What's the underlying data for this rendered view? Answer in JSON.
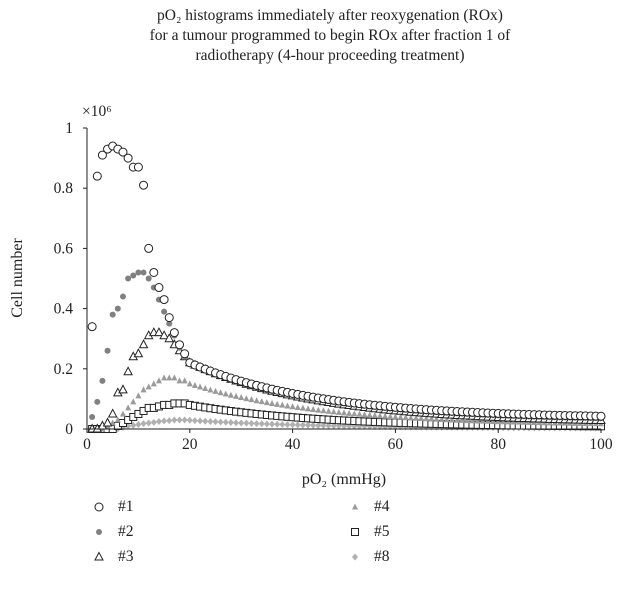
{
  "title_lines": [
    "pO₂ histograms immediately after reoxygenation (ROx)",
    "for a tumour programmed to begin ROx after fraction 1 of",
    "radiotherapy (4-hour proceeding treatment)"
  ],
  "chart_data": {
    "type": "scatter",
    "xlabel": "pO₂ (mmHg)",
    "ylabel": "Cell number",
    "y_multiplier_label": "×10⁶",
    "xlim": [
      0,
      100
    ],
    "ylim": [
      0,
      1
    ],
    "x_ticks": [
      "0",
      "20",
      "40",
      "60",
      "80",
      "100"
    ],
    "y_ticks": [
      "0",
      "0.2",
      "0.4",
      "0.6",
      "0.8",
      "1"
    ],
    "grid": false,
    "legend_position": "bottom",
    "series": [
      {
        "name": "#1",
        "marker": "open-circle",
        "color": "#222222",
        "peak_x": 5,
        "peak_y": 0.94,
        "points": [
          [
            1,
            0.34
          ],
          [
            2,
            0.84
          ],
          [
            3,
            0.91
          ],
          [
            4,
            0.93
          ],
          [
            5,
            0.94
          ],
          [
            6,
            0.93
          ],
          [
            7,
            0.92
          ],
          [
            8,
            0.9
          ],
          [
            9,
            0.87
          ],
          [
            10,
            0.87
          ],
          [
            11,
            0.81
          ],
          [
            12,
            0.6
          ],
          [
            13,
            0.52
          ],
          [
            14,
            0.47
          ],
          [
            15,
            0.43
          ],
          [
            16,
            0.37
          ],
          [
            17,
            0.32
          ],
          [
            18,
            0.28
          ],
          [
            19,
            0.25
          ],
          [
            20,
            0.22
          ]
        ]
      },
      {
        "name": "#2",
        "marker": "filled-circle",
        "color": "#808080",
        "peak_x": 11,
        "peak_y": 0.52,
        "points": [
          [
            1,
            0.04
          ],
          [
            2,
            0.09
          ],
          [
            3,
            0.16
          ],
          [
            4,
            0.26
          ],
          [
            5,
            0.38
          ],
          [
            6,
            0.4
          ],
          [
            7,
            0.44
          ],
          [
            8,
            0.5
          ],
          [
            9,
            0.51
          ],
          [
            10,
            0.52
          ],
          [
            11,
            0.52
          ],
          [
            12,
            0.5
          ],
          [
            13,
            0.47
          ],
          [
            14,
            0.43
          ],
          [
            15,
            0.39
          ],
          [
            16,
            0.35
          ],
          [
            17,
            0.31
          ],
          [
            18,
            0.27
          ],
          [
            19,
            0.24
          ],
          [
            20,
            0.22
          ]
        ]
      },
      {
        "name": "#3",
        "marker": "open-triangle",
        "color": "#222222",
        "peak_x": 13,
        "peak_y": 0.32,
        "points": [
          [
            1,
            0.0
          ],
          [
            2,
            0.0
          ],
          [
            3,
            0.01
          ],
          [
            4,
            0.02
          ],
          [
            5,
            0.05
          ],
          [
            6,
            0.12
          ],
          [
            7,
            0.13
          ],
          [
            8,
            0.19
          ],
          [
            9,
            0.24
          ],
          [
            10,
            0.25
          ],
          [
            11,
            0.28
          ],
          [
            12,
            0.31
          ],
          [
            13,
            0.32
          ],
          [
            14,
            0.32
          ],
          [
            15,
            0.31
          ],
          [
            16,
            0.3
          ],
          [
            17,
            0.28
          ],
          [
            18,
            0.26
          ],
          [
            19,
            0.24
          ],
          [
            20,
            0.22
          ]
        ]
      },
      {
        "name": "#4",
        "marker": "filled-triangle",
        "color": "#9a9a9a",
        "peak_x": 16,
        "peak_y": 0.17,
        "points": [
          [
            1,
            0.0
          ],
          [
            2,
            0.0
          ],
          [
            3,
            0.0
          ],
          [
            4,
            0.01
          ],
          [
            5,
            0.02
          ],
          [
            6,
            0.03
          ],
          [
            7,
            0.05
          ],
          [
            8,
            0.07
          ],
          [
            9,
            0.09
          ],
          [
            10,
            0.11
          ],
          [
            11,
            0.13
          ],
          [
            12,
            0.14
          ],
          [
            13,
            0.15
          ],
          [
            14,
            0.16
          ],
          [
            15,
            0.17
          ],
          [
            16,
            0.17
          ],
          [
            17,
            0.17
          ],
          [
            18,
            0.16
          ],
          [
            19,
            0.16
          ],
          [
            20,
            0.15
          ]
        ]
      },
      {
        "name": "#5",
        "marker": "open-square",
        "color": "#222222",
        "peak_x": 19,
        "peak_y": 0.085,
        "points": [
          [
            1,
            0.0
          ],
          [
            2,
            0.0
          ],
          [
            3,
            0.0
          ],
          [
            4,
            0.0
          ],
          [
            5,
            0.0
          ],
          [
            6,
            0.01
          ],
          [
            7,
            0.02
          ],
          [
            8,
            0.03
          ],
          [
            9,
            0.04
          ],
          [
            10,
            0.05
          ],
          [
            11,
            0.06
          ],
          [
            12,
            0.07
          ],
          [
            13,
            0.07
          ],
          [
            14,
            0.075
          ],
          [
            15,
            0.08
          ],
          [
            16,
            0.08
          ],
          [
            17,
            0.085
          ],
          [
            18,
            0.085
          ],
          [
            19,
            0.085
          ],
          [
            20,
            0.08
          ]
        ]
      },
      {
        "name": "#8",
        "marker": "filled-diamond",
        "color": "#b0b0b0",
        "peak_x": 18,
        "peak_y": 0.03,
        "points": [
          [
            1,
            0.0
          ],
          [
            2,
            0.0
          ],
          [
            3,
            0.0
          ],
          [
            4,
            0.0
          ],
          [
            5,
            0.0
          ],
          [
            6,
            0.0
          ],
          [
            7,
            0.005
          ],
          [
            8,
            0.01
          ],
          [
            9,
            0.012
          ],
          [
            10,
            0.015
          ],
          [
            11,
            0.018
          ],
          [
            12,
            0.02
          ],
          [
            13,
            0.022
          ],
          [
            14,
            0.025
          ],
          [
            15,
            0.027
          ],
          [
            16,
            0.028
          ],
          [
            17,
            0.03
          ],
          [
            18,
            0.03
          ],
          [
            19,
            0.03
          ],
          [
            20,
            0.029
          ]
        ]
      }
    ]
  }
}
